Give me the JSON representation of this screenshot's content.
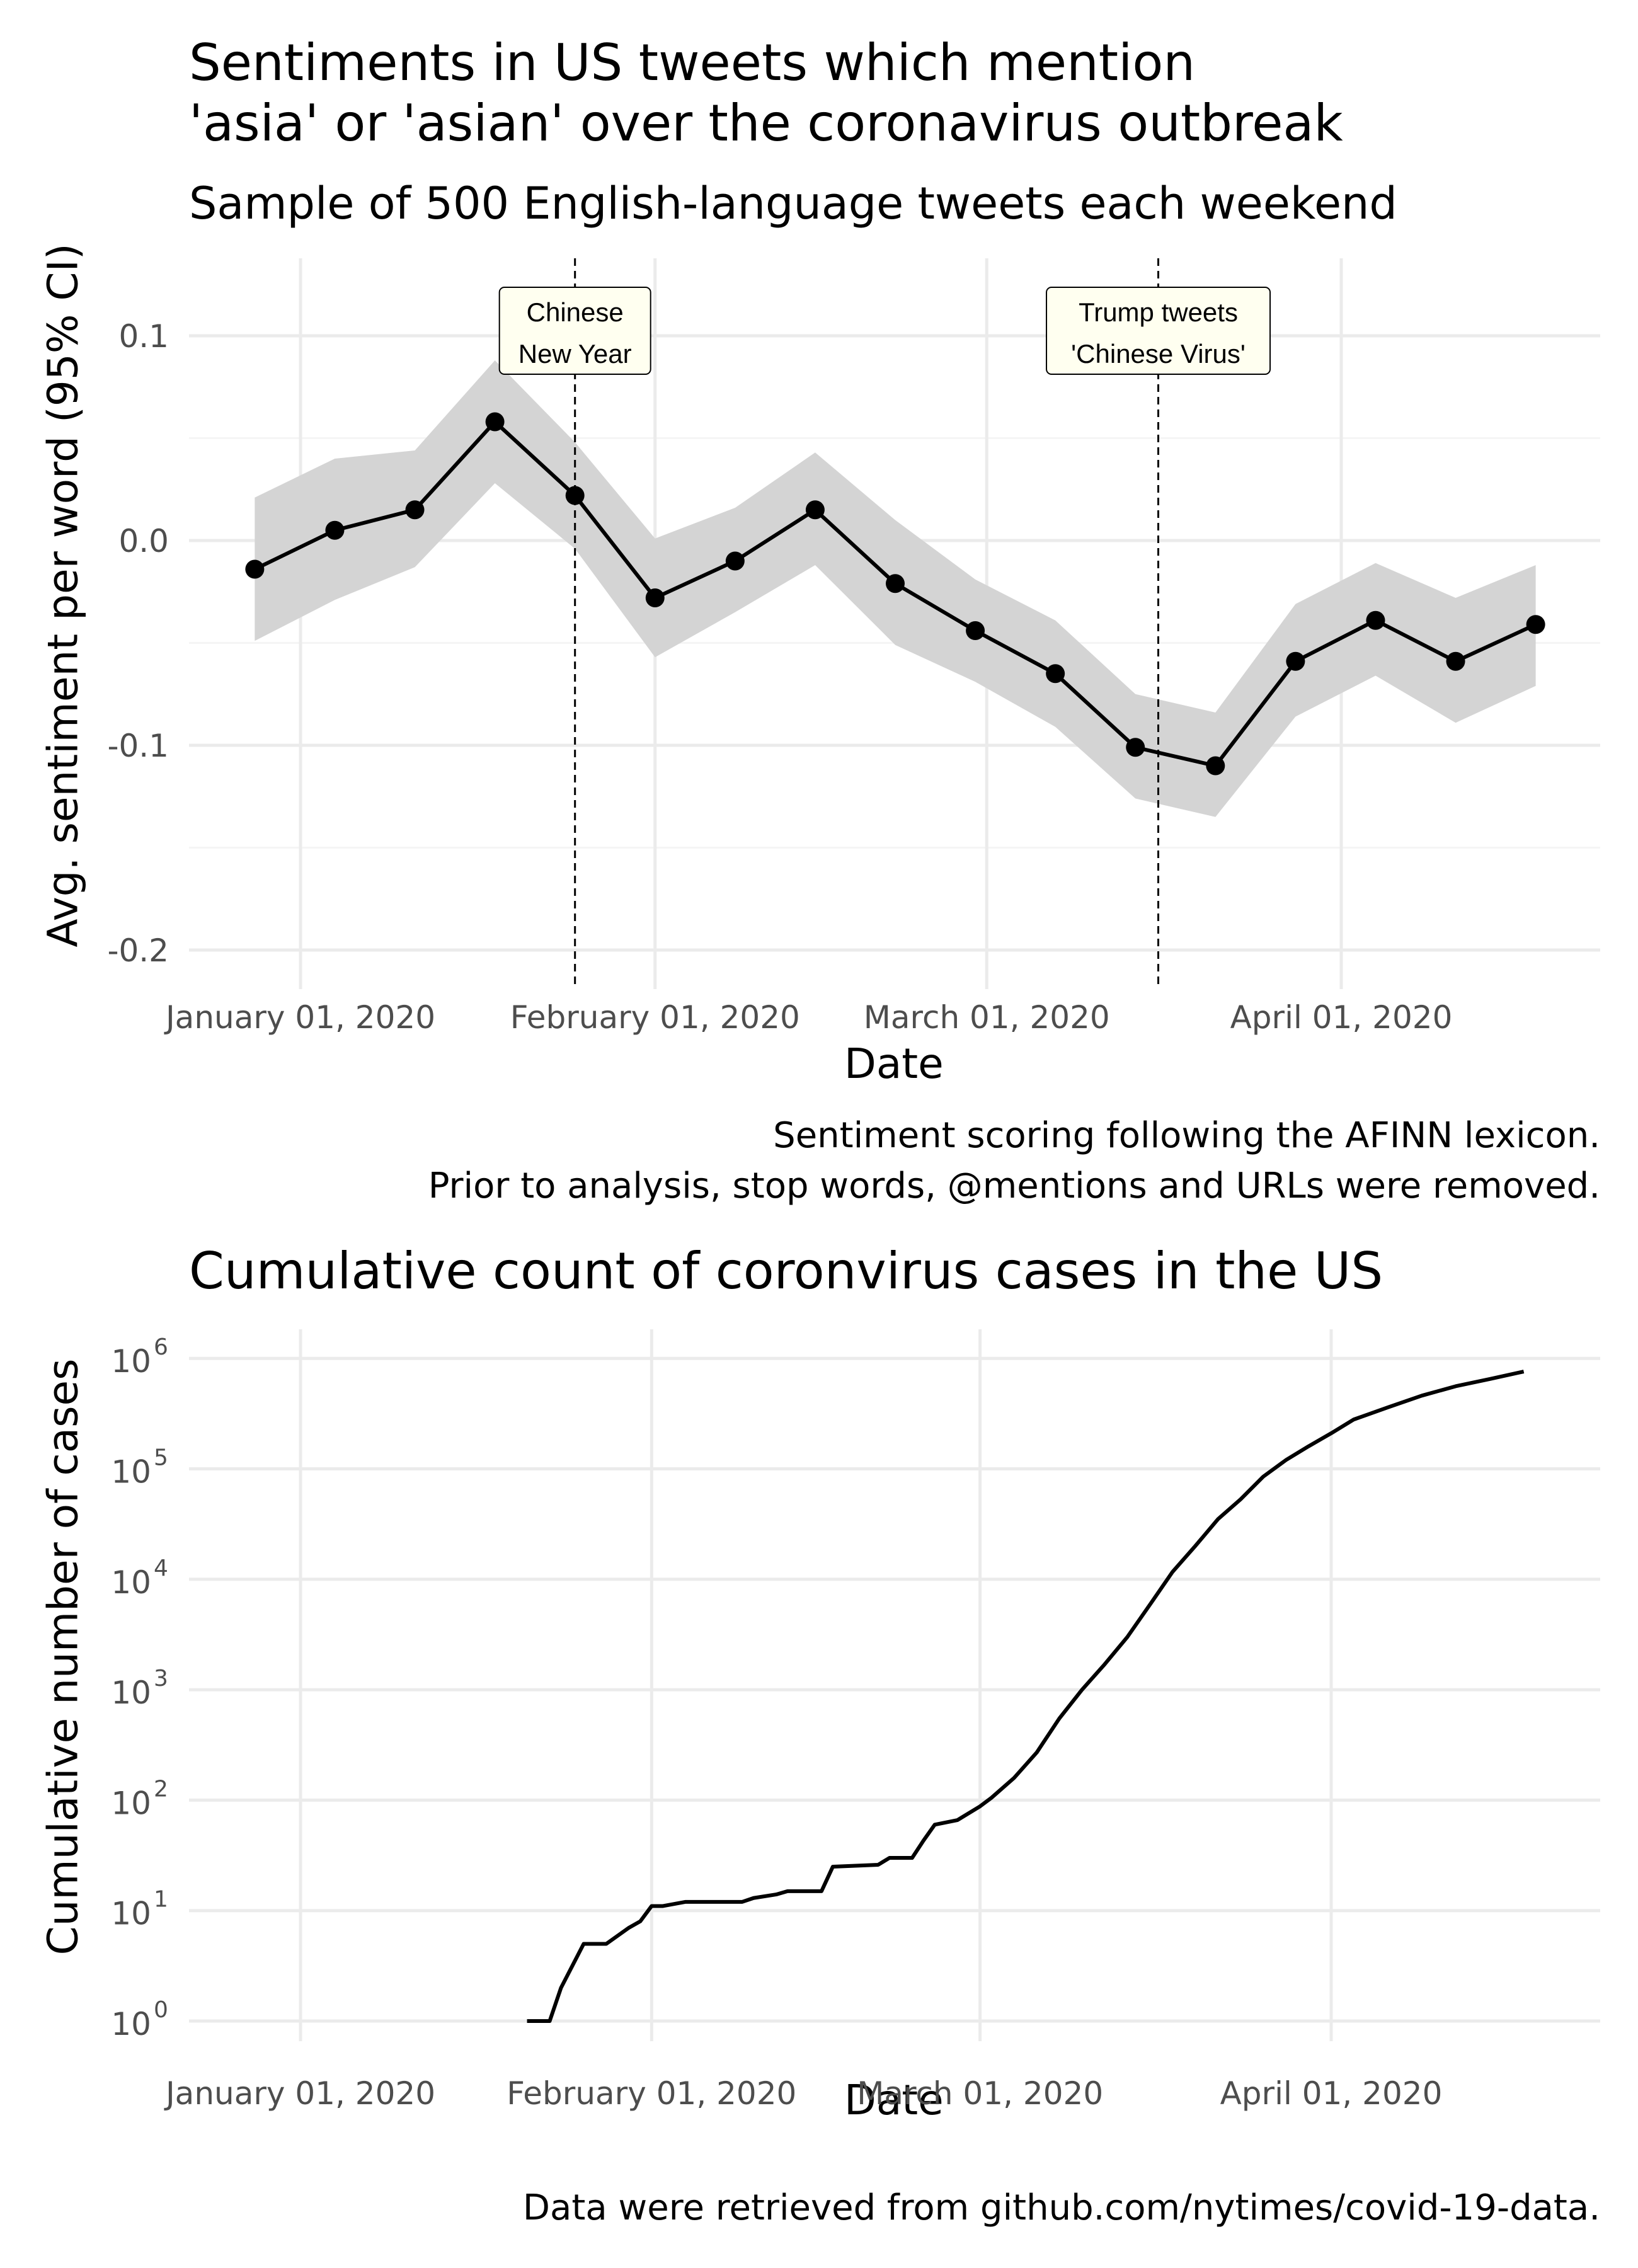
{
  "chart_data": [
    {
      "type": "line",
      "title": "Sentiments in US tweets which mention\n'asia' or 'asian' over the coronavirus outbreak",
      "title_lines": [
        "Sentiments in US tweets which mention",
        "'asia' or 'asian' over the coronavirus outbreak"
      ],
      "subtitle": "Sample of 500 English-language tweets each weekend",
      "xlabel": "Date",
      "ylabel": "Avg. sentiment per word (95% CI)",
      "x_ticks": [
        "January 01, 2020",
        "February 01, 2020",
        "March 01, 2020",
        "April 01, 2020"
      ],
      "y_ticks": [
        "0.1",
        "0.0",
        "-0.1",
        "-0.2"
      ],
      "ylim": [
        -0.21,
        0.135
      ],
      "grid": true,
      "series": [
        {
          "x": [
            "2019-12-28",
            "2020-01-04",
            "2020-01-11",
            "2020-01-18",
            "2020-01-25",
            "2020-02-01",
            "2020-02-08",
            "2020-02-15",
            "2020-02-22",
            "2020-02-29",
            "2020-03-07",
            "2020-03-14",
            "2020-03-21",
            "2020-03-28",
            "2020-04-04",
            "2020-04-11",
            "2020-04-18"
          ],
          "y": [
            -0.014,
            0.005,
            0.015,
            0.058,
            0.022,
            -0.028,
            -0.01,
            0.015,
            -0.021,
            -0.044,
            -0.065,
            -0.101,
            -0.11,
            -0.059,
            -0.039,
            -0.059,
            -0.041
          ],
          "ci_lower": [
            -0.049,
            -0.029,
            -0.013,
            0.028,
            -0.004,
            -0.057,
            -0.035,
            -0.012,
            -0.051,
            -0.069,
            -0.091,
            -0.126,
            -0.135,
            -0.086,
            -0.066,
            -0.089,
            -0.071
          ],
          "ci_upper": [
            0.021,
            0.04,
            0.044,
            0.088,
            0.048,
            0.001,
            0.016,
            0.043,
            0.01,
            -0.019,
            -0.039,
            -0.075,
            -0.084,
            -0.031,
            -0.011,
            -0.028,
            -0.012
          ]
        }
      ],
      "annotations": [
        {
          "x": "2020-01-25",
          "lines": [
            "Chinese",
            "New Year"
          ]
        },
        {
          "x": "2020-03-16",
          "lines": [
            "Trump tweets",
            "'Chinese Virus'"
          ]
        }
      ],
      "caption_lines": [
        "Sentiment scoring following the AFINN lexicon.",
        "Prior to analysis, stop words, @mentions and URLs were removed."
      ]
    },
    {
      "type": "line",
      "title": "Cumulative count of coronvirus cases in the US",
      "xlabel": "Date",
      "ylabel": "Cumulative number of cases",
      "y_scale": "log10",
      "x_ticks": [
        "January 01, 2020",
        "February 01, 2020",
        "March 01, 2020",
        "April 01, 2020"
      ],
      "y_ticks": [
        {
          "base": "10",
          "exp": "6",
          "value": 1000000
        },
        {
          "base": "10",
          "exp": "5",
          "value": 100000
        },
        {
          "base": "10",
          "exp": "4",
          "value": 10000
        },
        {
          "base": "10",
          "exp": "3",
          "value": 1000
        },
        {
          "base": "10",
          "exp": "2",
          "value": 100
        },
        {
          "base": "10",
          "exp": "1",
          "value": 10
        },
        {
          "base": "10",
          "exp": "0",
          "value": 1
        }
      ],
      "grid": true,
      "series": [
        {
          "x": [
            "2020-01-21",
            "2020-01-23",
            "2020-01-24",
            "2020-01-26",
            "2020-01-28",
            "2020-01-30",
            "2020-01-31",
            "2020-02-01",
            "2020-02-02",
            "2020-02-04",
            "2020-02-05",
            "2020-02-09",
            "2020-02-10",
            "2020-02-12",
            "2020-02-13",
            "2020-02-16",
            "2020-02-17",
            "2020-02-21",
            "2020-02-22",
            "2020-02-24",
            "2020-02-25",
            "2020-02-26",
            "2020-02-28",
            "2020-03-01",
            "2020-03-02",
            "2020-03-04",
            "2020-03-06",
            "2020-03-08",
            "2020-03-10",
            "2020-03-12",
            "2020-03-14",
            "2020-03-16",
            "2020-03-18",
            "2020-03-20",
            "2020-03-22",
            "2020-03-24",
            "2020-03-26",
            "2020-03-28",
            "2020-03-30",
            "2020-04-01",
            "2020-04-03",
            "2020-04-06",
            "2020-04-09",
            "2020-04-12",
            "2020-04-15",
            "2020-04-18"
          ],
          "y": [
            1,
            1,
            2,
            5,
            5,
            7,
            8,
            11,
            11,
            12,
            12,
            12,
            13,
            14,
            15,
            15,
            25,
            26,
            30,
            30,
            43,
            60,
            66,
            88,
            105,
            159,
            270,
            550,
            1000,
            1700,
            3000,
            5900,
            11700,
            20000,
            35000,
            53000,
            85000,
            120000,
            160000,
            210000,
            280000,
            360000,
            460000,
            560000,
            650000,
            760000
          ]
        }
      ],
      "caption_lines": [
        "Data were retrieved from github.com/nytimes/covid-19-data."
      ]
    }
  ]
}
